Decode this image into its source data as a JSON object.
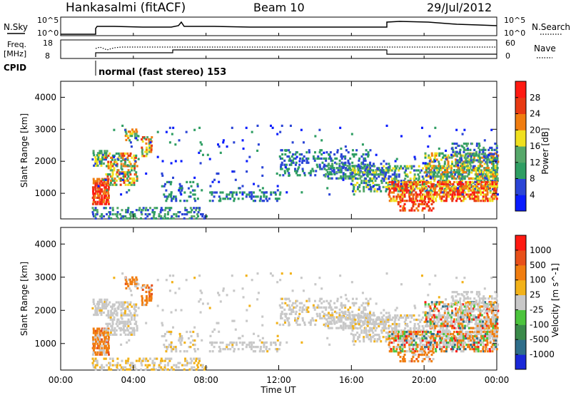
{
  "header": {
    "station": "Hankasalmi (fitACF)",
    "beam": "Beam 10",
    "date": "29/Jul/2012"
  },
  "top_panels": {
    "nsky_label": "N.Sky",
    "nsky_scale_top": "10^5",
    "nsky_scale_bottom": "10^0",
    "nsearch_label": "N.Search",
    "freq_label_line1": "Freq.",
    "freq_label_line2": "[MHz]",
    "freq_top": "18",
    "freq_bottom": "8",
    "nave_label": "Nave",
    "nave_top": "60",
    "nave_bottom": "0",
    "cpid_label": "CPID",
    "cpid_text": "normal (fast stereo) 153"
  },
  "chart_data": [
    {
      "type": "heatmap",
      "name": "power",
      "ylabel": "Slant Range [km]",
      "xlabel": "Time UT",
      "yticks": [
        "1000",
        "2000",
        "3000",
        "4000"
      ],
      "ylim": [
        200,
        4500
      ],
      "xlim": [
        0,
        24
      ],
      "colorbar": {
        "label": "Power [dB]",
        "ticks": [
          "4",
          "8",
          "12",
          "16",
          "20",
          "24",
          "28"
        ],
        "colors": [
          "#0a1cff",
          "#2b45d6",
          "#2f9e63",
          "#56a86a",
          "#f0e01f",
          "#f07d10",
          "#e83a13",
          "#ff1a12"
        ]
      }
    },
    {
      "type": "heatmap",
      "name": "velocity",
      "ylabel": "Slant Range [km]",
      "xlabel": "Time UT",
      "yticks": [
        "1000",
        "2000",
        "3000",
        "4000"
      ],
      "ylim": [
        200,
        4500
      ],
      "xlim": [
        0,
        24
      ],
      "colorbar": {
        "label": "Velocity [m s^-1]",
        "ticks": [
          "1000",
          "500",
          "100",
          "25",
          "-25",
          "-100",
          "-500",
          "-1000"
        ],
        "colors": [
          "#1a28d8",
          "#2f6e8a",
          "#3a8a4a",
          "#4cc43d",
          "#c8c8c8",
          "#f2b21a",
          "#f07d10",
          "#e8501a",
          "#ff1a12"
        ]
      }
    }
  ],
  "x_ticks": [
    "00:00",
    "04:00",
    "08:00",
    "12:00",
    "16:00",
    "20:00",
    "00:00"
  ],
  "colors": {
    "ground_scatter": "#c8c8c8",
    "axis": "#000000"
  }
}
